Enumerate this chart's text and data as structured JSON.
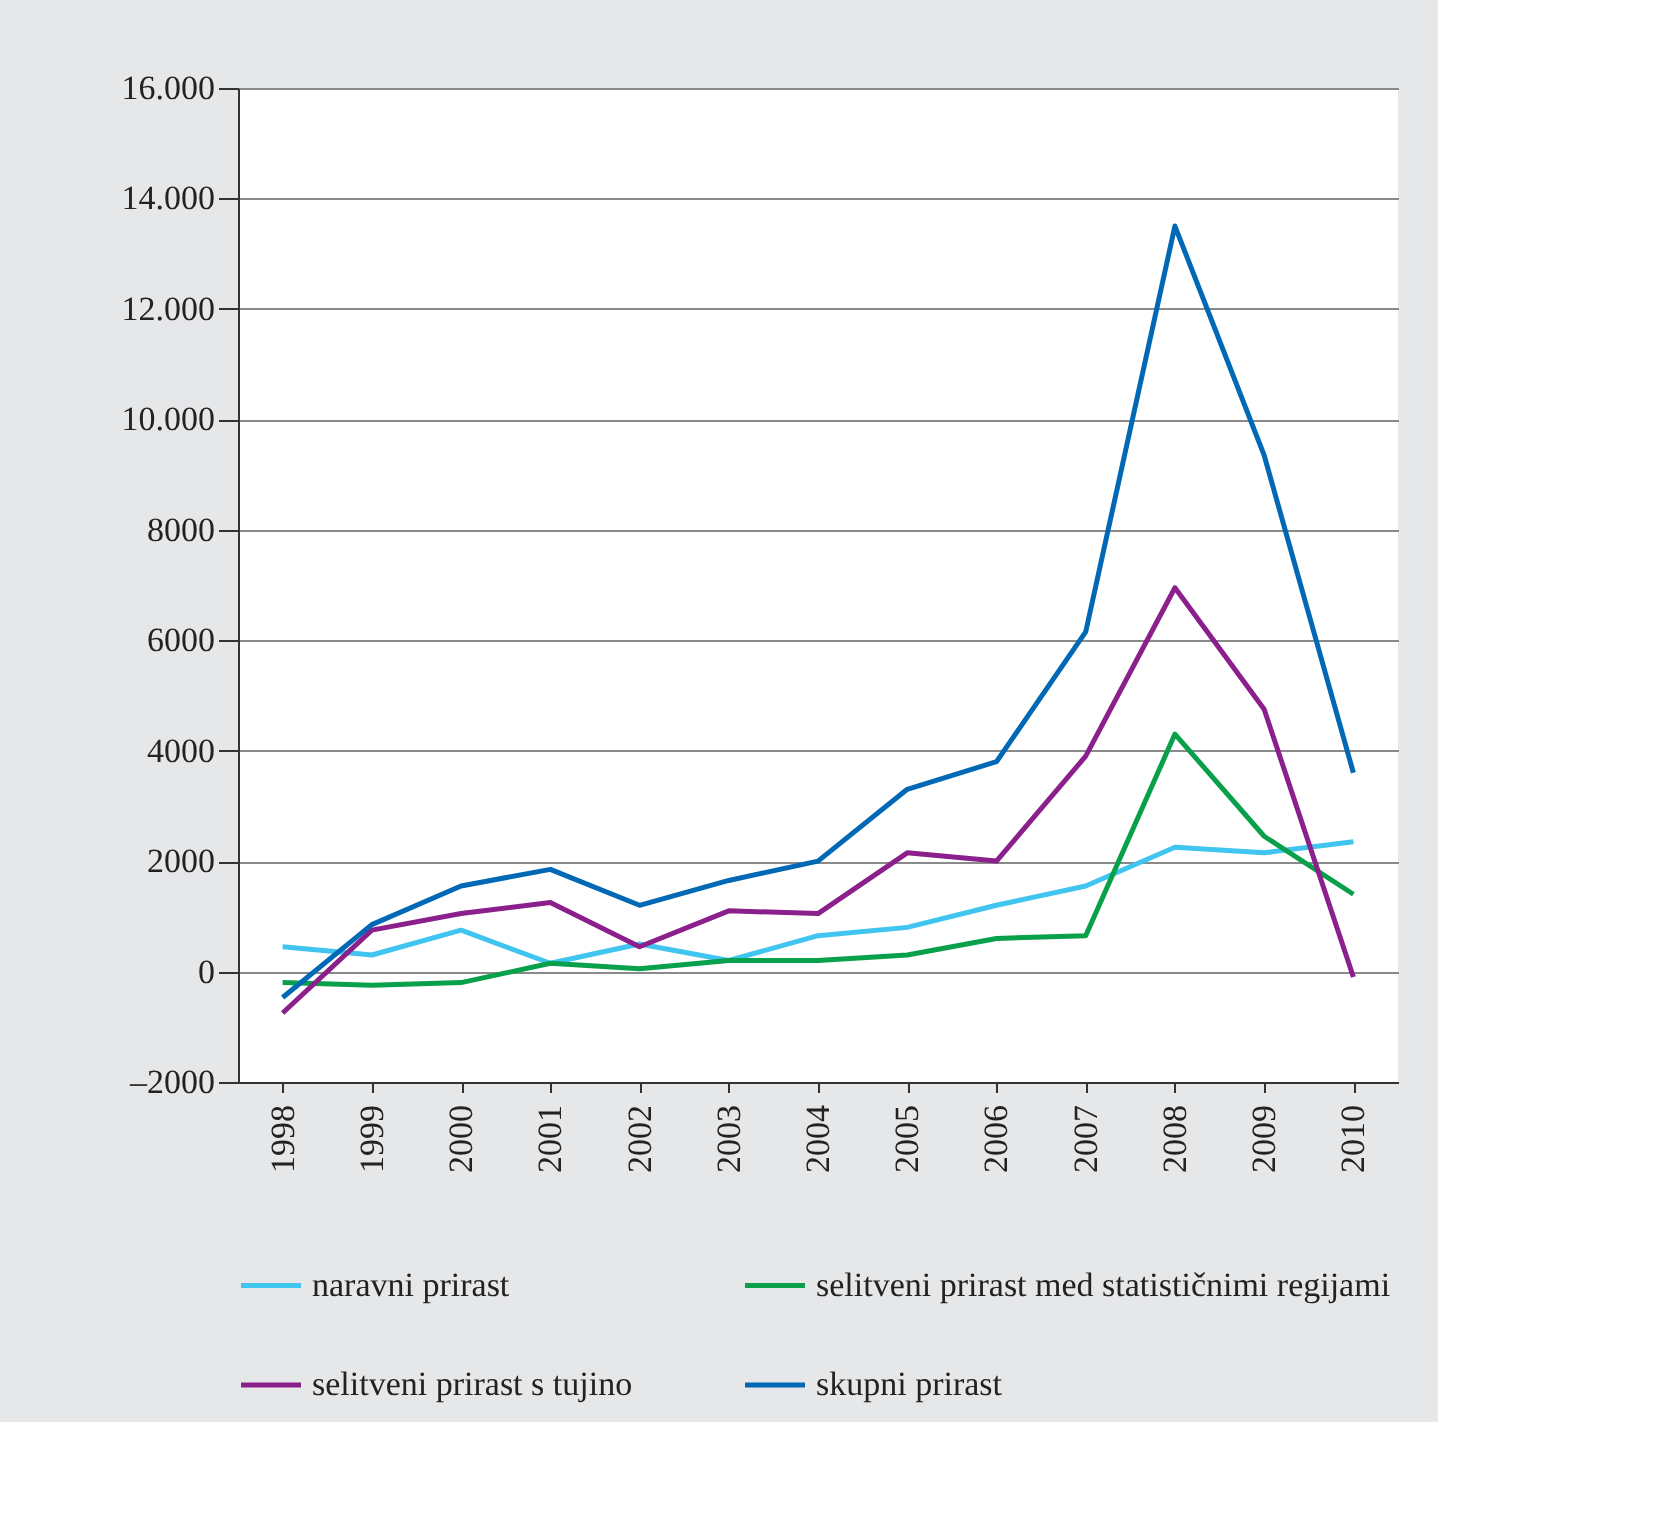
{
  "chart_data": {
    "type": "line",
    "categories": [
      "1998",
      "1999",
      "2000",
      "2001",
      "2002",
      "2003",
      "2004",
      "2005",
      "2006",
      "2007",
      "2008",
      "2009",
      "2010"
    ],
    "series": [
      {
        "name": "naravni prirast",
        "color": "#40c4f0",
        "values": [
          450,
          300,
          750,
          150,
          500,
          200,
          650,
          800,
          1200,
          1550,
          2250,
          2150,
          2350
        ]
      },
      {
        "name": "selitveni prirast med statističnimi regijami",
        "color": "#08a04a",
        "values": [
          -200,
          -250,
          -200,
          150,
          50,
          200,
          200,
          300,
          600,
          650,
          4300,
          2450,
          1400
        ]
      },
      {
        "name": "selitveni prirast s tujino",
        "color": "#8b1f8c",
        "values": [
          -750,
          750,
          1050,
          1250,
          450,
          1100,
          1050,
          2150,
          2000,
          3900,
          6950,
          4750,
          -100
        ]
      },
      {
        "name": "skupni prirast",
        "color": "#0068b4",
        "values": [
          -470,
          850,
          1550,
          1850,
          1200,
          1650,
          2000,
          3300,
          3800,
          6150,
          13500,
          9350,
          3600
        ]
      }
    ],
    "ylim": [
      -2000,
      16000
    ],
    "yticks": [
      {
        "value": -2000,
        "label": "–2000"
      },
      0,
      2000,
      4000,
      6000,
      8000,
      {
        "value": 10000,
        "label": "10.000"
      },
      {
        "value": 12000,
        "label": "12.000"
      },
      {
        "value": 14000,
        "label": "14.000"
      },
      {
        "value": 16000,
        "label": "16.000"
      }
    ],
    "grid": "y",
    "legend": "bottom",
    "line_style": "solid",
    "marker": "none"
  }
}
